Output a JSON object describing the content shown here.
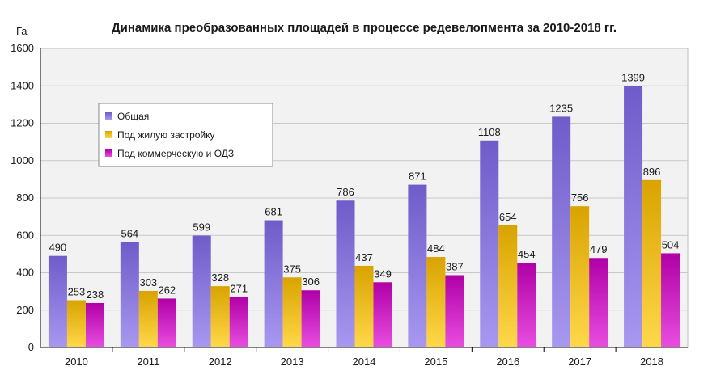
{
  "chart_data": {
    "type": "bar",
    "title": "Динамика преобразованных площадей в процессе редевелопмента за 2010-2018 гг.",
    "ylabel": "Га",
    "xlabel": "",
    "ylim": [
      0,
      1600
    ],
    "yticks": [
      0,
      200,
      400,
      600,
      800,
      1000,
      1200,
      1400,
      1600
    ],
    "grid": true,
    "legend_position": "top-left",
    "categories": [
      "2010",
      "2011",
      "2012",
      "2013",
      "2014",
      "2015",
      "2016",
      "2017",
      "2018"
    ],
    "series": [
      {
        "name": "Общая",
        "color": "#7b68d6",
        "values": [
          490,
          564,
          599,
          681,
          786,
          871,
          1108,
          1235,
          1399
        ]
      },
      {
        "name": "Под жилую застройку",
        "color": "#e8b400",
        "values": [
          253,
          303,
          328,
          375,
          437,
          484,
          654,
          756,
          896
        ]
      },
      {
        "name": "Под коммерческую и ОДЗ",
        "color": "#c400b8",
        "values": [
          238,
          262,
          271,
          306,
          349,
          387,
          454,
          479,
          504
        ]
      }
    ]
  }
}
